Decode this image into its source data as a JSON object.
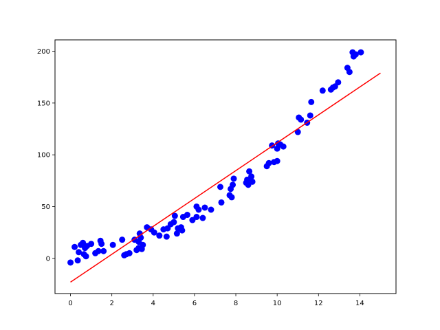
{
  "chart_data": {
    "type": "scatter",
    "title": "",
    "xlabel": "",
    "ylabel": "",
    "xlim": [
      -0.75,
      15.75
    ],
    "ylim": [
      -34,
      211
    ],
    "xticks": [
      0,
      2,
      4,
      6,
      8,
      10,
      12,
      14
    ],
    "yticks": [
      0,
      50,
      100,
      150,
      200
    ],
    "grid": false,
    "legend": "none",
    "colors": {
      "points": "#0000ff",
      "fit_line": "#ff0000"
    },
    "series": [
      {
        "kind": "scatter",
        "points": [
          [
            0.0,
            -4
          ],
          [
            0.2,
            11
          ],
          [
            0.35,
            -2
          ],
          [
            0.4,
            6
          ],
          [
            0.5,
            13
          ],
          [
            0.6,
            15
          ],
          [
            0.65,
            4
          ],
          [
            0.7,
            10
          ],
          [
            0.75,
            2
          ],
          [
            0.8,
            12
          ],
          [
            1.0,
            14
          ],
          [
            1.2,
            5
          ],
          [
            1.35,
            7
          ],
          [
            1.45,
            17
          ],
          [
            1.5,
            14
          ],
          [
            1.6,
            7
          ],
          [
            2.05,
            13
          ],
          [
            2.5,
            18
          ],
          [
            2.6,
            3
          ],
          [
            2.7,
            4
          ],
          [
            2.85,
            5
          ],
          [
            3.1,
            18
          ],
          [
            3.2,
            8
          ],
          [
            3.3,
            10
          ],
          [
            3.3,
            16
          ],
          [
            3.35,
            24
          ],
          [
            3.4,
            20
          ],
          [
            3.45,
            9
          ],
          [
            3.5,
            13
          ],
          [
            3.7,
            30
          ],
          [
            3.9,
            28
          ],
          [
            4.05,
            25
          ],
          [
            4.3,
            22
          ],
          [
            4.5,
            28
          ],
          [
            4.65,
            21
          ],
          [
            4.7,
            29
          ],
          [
            4.85,
            33
          ],
          [
            5.0,
            35
          ],
          [
            5.05,
            41
          ],
          [
            5.15,
            24
          ],
          [
            5.2,
            29
          ],
          [
            5.35,
            30
          ],
          [
            5.4,
            27
          ],
          [
            5.45,
            40
          ],
          [
            5.65,
            42
          ],
          [
            5.9,
            37
          ],
          [
            6.1,
            40
          ],
          [
            6.1,
            50
          ],
          [
            6.2,
            47
          ],
          [
            6.4,
            39
          ],
          [
            6.5,
            49
          ],
          [
            6.8,
            47
          ],
          [
            7.25,
            69
          ],
          [
            7.3,
            54
          ],
          [
            7.7,
            61
          ],
          [
            7.75,
            67
          ],
          [
            7.8,
            59
          ],
          [
            7.85,
            71
          ],
          [
            7.9,
            77
          ],
          [
            8.5,
            73
          ],
          [
            8.55,
            76
          ],
          [
            8.6,
            71
          ],
          [
            8.65,
            84
          ],
          [
            8.75,
            79
          ],
          [
            8.8,
            74
          ],
          [
            9.5,
            89
          ],
          [
            9.6,
            92
          ],
          [
            9.75,
            109
          ],
          [
            9.85,
            93
          ],
          [
            10.0,
            106
          ],
          [
            10.0,
            94
          ],
          [
            10.05,
            111
          ],
          [
            10.15,
            110
          ],
          [
            10.3,
            108
          ],
          [
            11.0,
            122
          ],
          [
            11.05,
            136
          ],
          [
            11.15,
            134
          ],
          [
            11.45,
            131
          ],
          [
            11.6,
            138
          ],
          [
            11.65,
            151
          ],
          [
            12.2,
            162
          ],
          [
            12.6,
            163
          ],
          [
            12.7,
            165
          ],
          [
            12.8,
            166
          ],
          [
            12.95,
            170
          ],
          [
            13.4,
            184
          ],
          [
            13.5,
            180
          ],
          [
            13.65,
            199
          ],
          [
            13.7,
            195
          ],
          [
            13.8,
            197
          ],
          [
            14.05,
            199
          ]
        ]
      },
      {
        "kind": "line",
        "points": [
          [
            0,
            -23
          ],
          [
            15,
            179
          ]
        ]
      }
    ]
  }
}
